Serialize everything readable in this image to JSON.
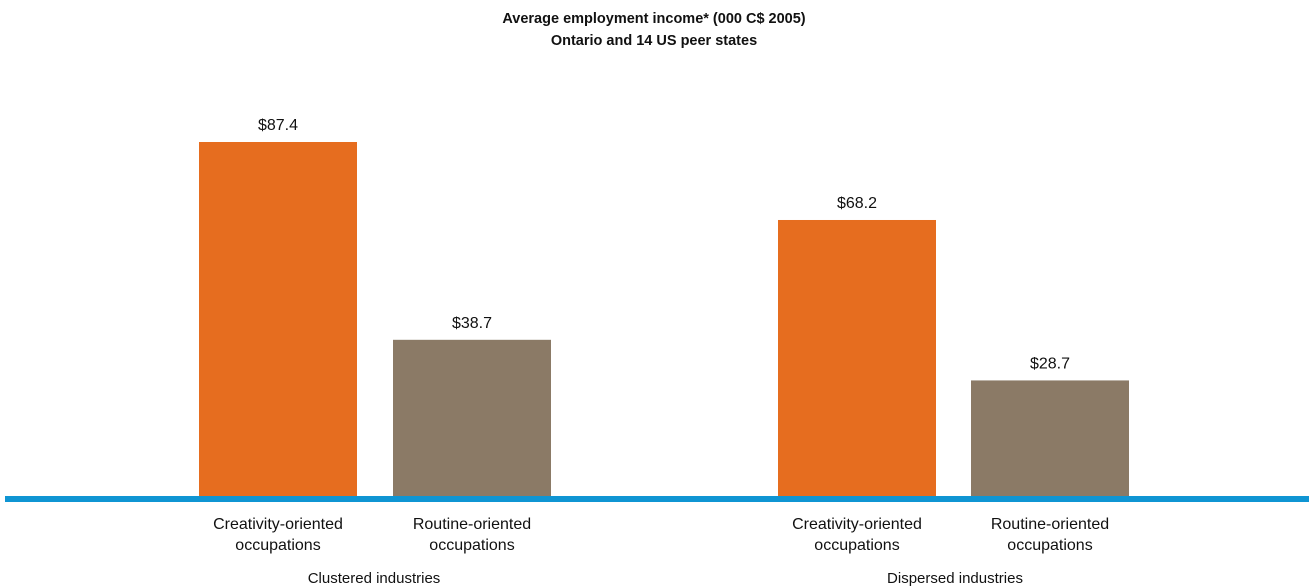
{
  "chart_data": {
    "type": "bar",
    "title": "Average employment income* (000 C$ 2005)",
    "subtitle": "Ontario and 14 US peer states",
    "groups": [
      "Clustered industries",
      "Dispersed industries"
    ],
    "categories": [
      [
        "Creativity-oriented",
        "occupations"
      ],
      [
        "Routine-oriented",
        "occupations"
      ]
    ],
    "series": [
      {
        "group": "Clustered industries",
        "values": [
          87.4,
          38.7
        ],
        "labels": [
          "$87.4",
          "$38.7"
        ]
      },
      {
        "group": "Dispersed industries",
        "values": [
          68.2,
          28.7
        ],
        "labels": [
          "$68.2",
          "$28.7"
        ]
      }
    ],
    "colors": {
      "creativity": "#E66D1F",
      "routine": "#8B7A66",
      "baseline": "#0F95D3"
    },
    "ylim": [
      0,
      100
    ],
    "grid": false,
    "legend": "none"
  }
}
